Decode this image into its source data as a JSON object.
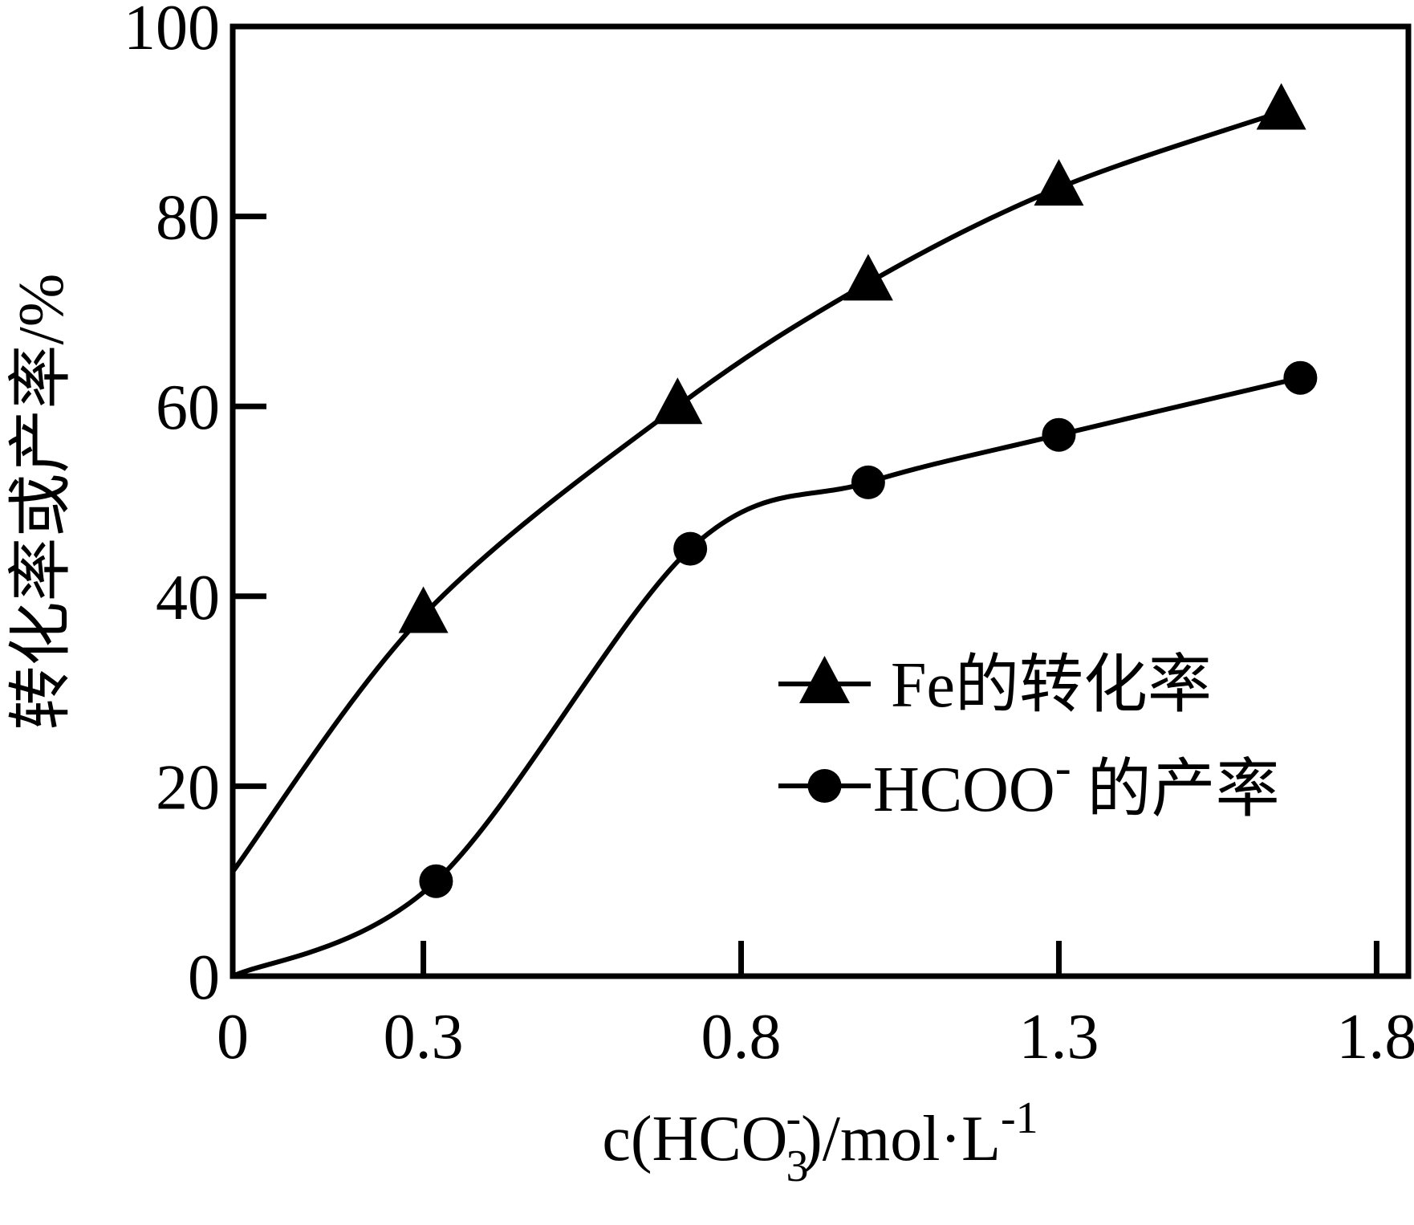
{
  "chart_data": {
    "type": "line",
    "title": "",
    "xlabel": {
      "main": "c(HCO",
      "sub": "3",
      "sup": "-",
      "rest": ")/mol·L",
      "rest_sup": "-1"
    },
    "ylabel": "转化率或产率/%",
    "xlim": [
      0,
      1.85
    ],
    "ylim": [
      0,
      100
    ],
    "x_ticks": [
      {
        "value": 0,
        "label": "0"
      },
      {
        "value": 0.3,
        "label": "0.3"
      },
      {
        "value": 0.8,
        "label": "0.8"
      },
      {
        "value": 1.3,
        "label": "1.3"
      },
      {
        "value": 1.8,
        "label": "1.8"
      }
    ],
    "y_ticks": [
      {
        "value": 0,
        "label": "0"
      },
      {
        "value": 20,
        "label": "20"
      },
      {
        "value": 40,
        "label": "40"
      },
      {
        "value": 60,
        "label": "60"
      },
      {
        "value": 80,
        "label": "80"
      },
      {
        "value": 100,
        "label": "100"
      }
    ],
    "grid": false,
    "legend_position": "lower-right",
    "series": [
      {
        "name": "Fe的转化率",
        "marker": "triangle",
        "color": "#000000",
        "curve_start": {
          "x": 0,
          "y": 11
        },
        "points": [
          {
            "x": 0.3,
            "y": 38
          },
          {
            "x": 0.7,
            "y": 60
          },
          {
            "x": 1.0,
            "y": 73
          },
          {
            "x": 1.3,
            "y": 83
          },
          {
            "x": 1.65,
            "y": 91
          }
        ]
      },
      {
        "name_main": "HCOO",
        "name_sup": "-",
        "name_rest": " 的产率",
        "marker": "circle",
        "color": "#000000",
        "curve_start": {
          "x": 0,
          "y": 0
        },
        "points": [
          {
            "x": 0.32,
            "y": 10
          },
          {
            "x": 0.72,
            "y": 45
          },
          {
            "x": 1.0,
            "y": 52
          },
          {
            "x": 1.3,
            "y": 57
          },
          {
            "x": 1.68,
            "y": 63
          }
        ]
      }
    ]
  }
}
